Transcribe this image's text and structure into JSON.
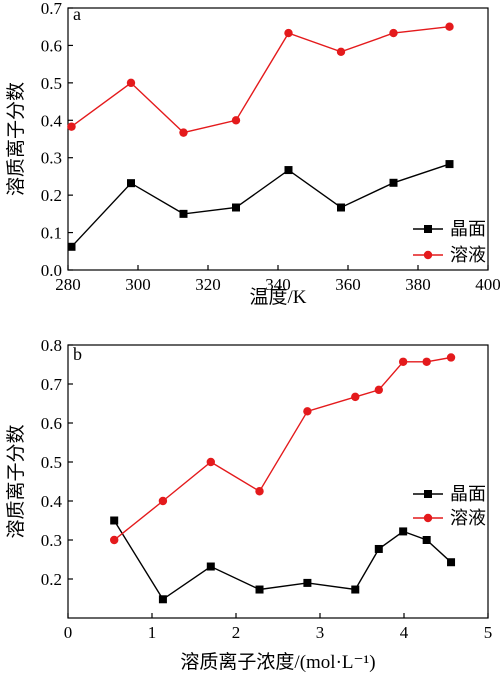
{
  "chart_data": [
    {
      "type": "line",
      "panel_label": "a",
      "xlabel": "温度/K",
      "ylabel": "溶质离子分数",
      "xlim": [
        280,
        400
      ],
      "ylim": [
        0.0,
        0.7
      ],
      "xticks": [
        280,
        300,
        320,
        340,
        360,
        380,
        400
      ],
      "xtick_labels": [
        "280",
        "300",
        "320",
        "340",
        "360",
        "380",
        "400"
      ],
      "yticks": [
        0.0,
        0.1,
        0.2,
        0.3,
        0.4,
        0.5,
        0.6,
        0.7
      ],
      "ytick_labels": [
        "0.0",
        "0.1",
        "0.2",
        "0.3",
        "0.4",
        "0.5",
        "0.6",
        "0.7"
      ],
      "grid": false,
      "legend_position": "bottom-right",
      "series": [
        {
          "name": "晶面",
          "color": "#000000",
          "marker": "square",
          "x": [
            281,
            298,
            313,
            328,
            343,
            358,
            373,
            389
          ],
          "y": [
            0.062,
            0.232,
            0.15,
            0.167,
            0.267,
            0.167,
            0.233,
            0.283
          ]
        },
        {
          "name": "溶液",
          "color": "#e41a1c",
          "marker": "circle",
          "x": [
            281,
            298,
            313,
            328,
            343,
            358,
            373,
            389
          ],
          "y": [
            0.383,
            0.5,
            0.367,
            0.4,
            0.633,
            0.583,
            0.633,
            0.65
          ]
        }
      ]
    },
    {
      "type": "line",
      "panel_label": "b",
      "xlabel": "溶质离子浓度/(mol·L⁻¹)",
      "ylabel": "溶质离子分数",
      "xlim": [
        0,
        5
      ],
      "ylim": [
        0.1,
        0.8
      ],
      "xticks": [
        0,
        1,
        2,
        3,
        4,
        5
      ],
      "xtick_labels": [
        "0",
        "1",
        "2",
        "3",
        "4",
        "5"
      ],
      "yticks": [
        0.2,
        0.3,
        0.4,
        0.5,
        0.6,
        0.7,
        0.8
      ],
      "ytick_labels": [
        "0.2",
        "0.3",
        "0.4",
        "0.5",
        "0.6",
        "0.7",
        "0.8"
      ],
      "grid": false,
      "legend_position": "right",
      "series": [
        {
          "name": "晶面",
          "color": "#000000",
          "marker": "square",
          "x": [
            0.55,
            1.13,
            1.7,
            2.28,
            2.85,
            3.42,
            3.7,
            3.99,
            4.27,
            4.56
          ],
          "y": [
            0.35,
            0.148,
            0.232,
            0.173,
            0.19,
            0.173,
            0.277,
            0.322,
            0.3,
            0.243
          ]
        },
        {
          "name": "溶液",
          "color": "#e41a1c",
          "marker": "circle",
          "x": [
            0.55,
            1.13,
            1.7,
            2.28,
            2.85,
            3.42,
            3.7,
            3.99,
            4.27,
            4.56
          ],
          "y": [
            0.3,
            0.4,
            0.5,
            0.425,
            0.63,
            0.667,
            0.685,
            0.757,
            0.757,
            0.768
          ]
        }
      ]
    }
  ]
}
